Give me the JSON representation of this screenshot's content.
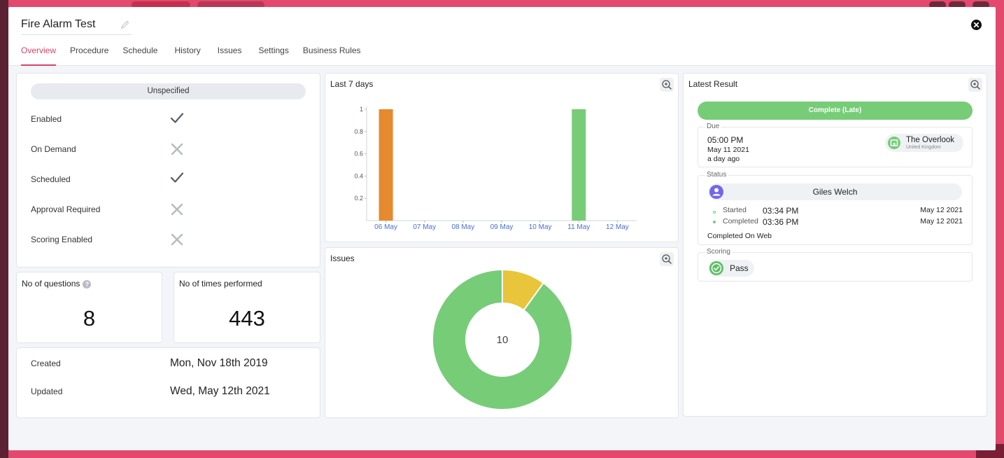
{
  "header": {
    "title": "Fire Alarm Test",
    "tabs": [
      {
        "label": "Overview",
        "active": true
      },
      {
        "label": "Procedure"
      },
      {
        "label": "Schedule"
      },
      {
        "label": "History"
      },
      {
        "label": "Issues"
      },
      {
        "label": "Settings"
      },
      {
        "label": "Business Rules"
      }
    ]
  },
  "settings": {
    "category": "Unspecified",
    "flags": [
      {
        "label": "Enabled",
        "value": true
      },
      {
        "label": "On Demand",
        "value": false
      },
      {
        "label": "Scheduled",
        "value": true
      },
      {
        "label": "Approval Required",
        "value": false
      },
      {
        "label": "Scoring Enabled",
        "value": false
      }
    ]
  },
  "stats": {
    "questions_label": "No of questions",
    "questions_value": "8",
    "performed_label": "No of times performed",
    "performed_value": "443"
  },
  "dates": {
    "created_label": "Created",
    "created_value": "Mon, Nov 18th 2019",
    "updated_label": "Updated",
    "updated_value": "Wed, May 12th 2021"
  },
  "last7": {
    "title": "Last 7 days"
  },
  "issues_card": {
    "title": "Issues"
  },
  "latest": {
    "title": "Latest Result",
    "status_bar": "Complete (Late)",
    "due_label": "Due",
    "due_time": "05:00 PM",
    "due_date": "May 11 2021",
    "due_relative": "a day ago",
    "location_name": "The Overlook",
    "location_country": "United Kingdom",
    "status_label": "Status",
    "user": "Giles Welch",
    "started_label": "Started",
    "started_time": "03:34 PM",
    "started_date": "May 12 2021",
    "completed_label": "Completed",
    "completed_time": "03:36 PM",
    "completed_date": "May 12 2021",
    "completed_on": "Completed On Web",
    "scoring_label": "Scoring",
    "scoring_value": "Pass"
  },
  "colors": {
    "accent": "#d1456a",
    "green": "#77cc78",
    "orange": "#e58a2e",
    "yellow": "#e8c53a",
    "purple": "#7366e8"
  },
  "chart_data": [
    {
      "type": "bar",
      "categories": [
        "06 May",
        "07 May",
        "08 May",
        "09 May",
        "10 May",
        "11 May",
        "12 May"
      ],
      "values": [
        1,
        0,
        0,
        0,
        0,
        1,
        0
      ],
      "bar_colors": [
        "#e58a2e",
        null,
        null,
        null,
        null,
        "#77cc78",
        null
      ],
      "yticks": [
        "0.2",
        "0.4",
        "0.6",
        "0.8",
        "1"
      ],
      "ylim": [
        0,
        1
      ]
    },
    {
      "type": "pie",
      "center_label": "10",
      "slices": [
        {
          "value": 1,
          "color": "#e8c53a"
        },
        {
          "value": 9,
          "color": "#77cc78"
        }
      ]
    }
  ]
}
